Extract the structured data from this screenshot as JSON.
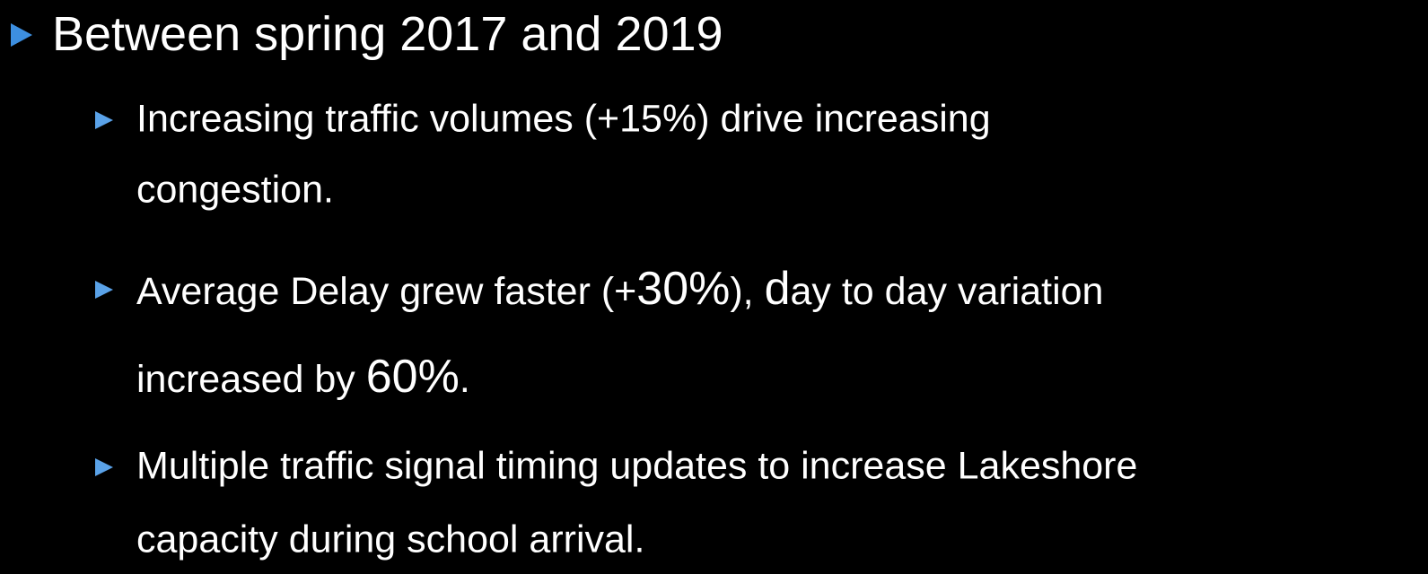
{
  "heading": "Between spring 2017 and 2019",
  "bullets": [
    {
      "lines": [
        [
          "Increasing traffic volumes (+15%) drive increasing"
        ],
        [
          "congestion."
        ]
      ]
    },
    {
      "lines": [
        [
          "Average Delay grew faster (+",
          "30%",
          "), ",
          "d",
          "ay to day variation"
        ],
        [
          "increased by ",
          "60%",
          "."
        ]
      ]
    },
    {
      "lines": [
        [
          "Multiple traffic signal timing updates to increase Lakeshore"
        ],
        [
          "capacity during school arrival."
        ]
      ]
    }
  ]
}
